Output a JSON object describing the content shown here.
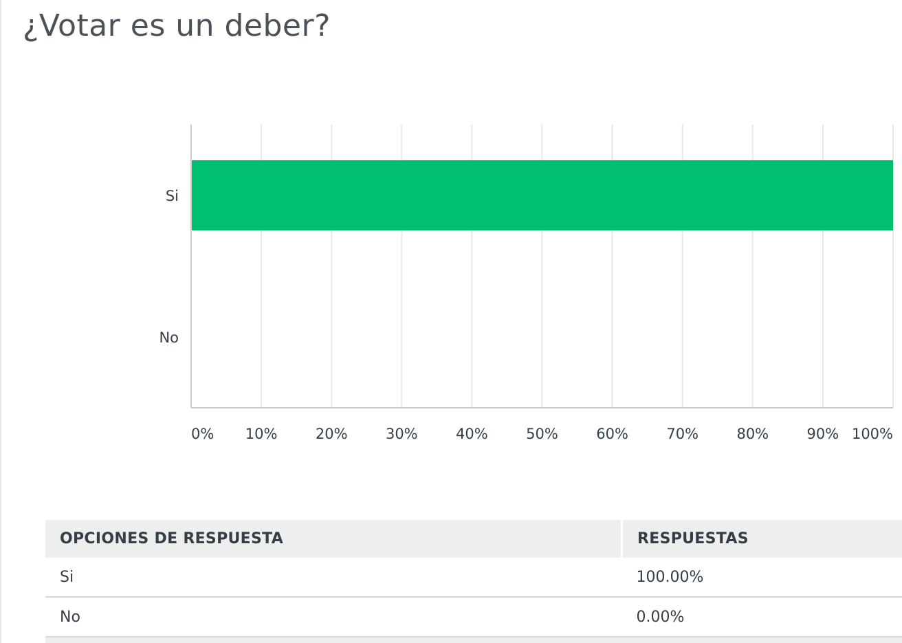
{
  "question": {
    "title": "¿Votar es un deber?"
  },
  "chart_data": {
    "type": "bar",
    "orientation": "horizontal",
    "categories": [
      "Si",
      "No"
    ],
    "values": [
      100,
      0
    ],
    "x_ticks": [
      "0%",
      "10%",
      "20%",
      "30%",
      "40%",
      "50%",
      "60%",
      "70%",
      "80%",
      "90%",
      "100%"
    ],
    "xlim": [
      0,
      100
    ],
    "grid": true,
    "bar_color": "#00bf6f",
    "grid_color": "#e7e8e9",
    "axis_color": "#c8cccf"
  },
  "table": {
    "headers": {
      "options": "OPCIONES DE RESPUESTA",
      "responses": "RESPUESTAS"
    },
    "rows": [
      {
        "option": "Si",
        "response": "100.00%"
      },
      {
        "option": "No",
        "response": "0.00%"
      }
    ]
  }
}
